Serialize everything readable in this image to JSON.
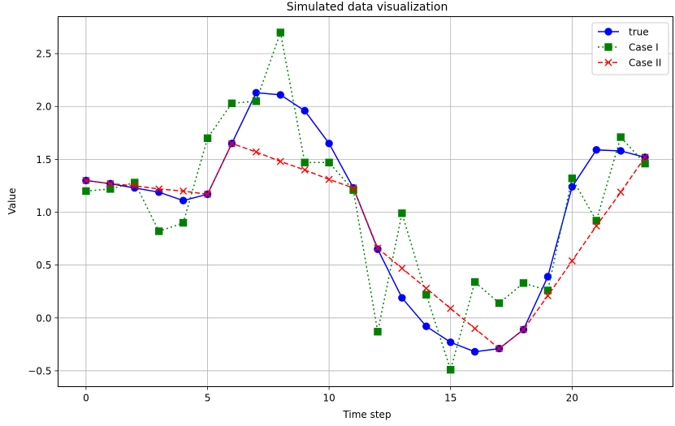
{
  "chart_data": {
    "type": "line",
    "title": "Simulated data visualization",
    "xlabel": "Time step",
    "ylabel": "Value",
    "xlim": [
      -1.15,
      24.15
    ],
    "ylim": [
      -0.65,
      2.85
    ],
    "xticks": [
      0,
      5,
      10,
      15,
      20
    ],
    "yticks": [
      -0.5,
      0.0,
      0.5,
      1.0,
      1.5,
      2.0,
      2.5
    ],
    "ytick_labels": [
      "−0.5",
      "0.0",
      "0.5",
      "1.0",
      "1.5",
      "2.0",
      "2.5"
    ],
    "grid": true,
    "legend_position": "top-right",
    "x": [
      0,
      1,
      2,
      3,
      4,
      5,
      6,
      7,
      8,
      9,
      10,
      11,
      12,
      13,
      14,
      15,
      16,
      17,
      18,
      19,
      20,
      21,
      22,
      23
    ],
    "series": [
      {
        "name": "true",
        "color": "#0000ff",
        "line_style": "solid",
        "marker": "circle",
        "values": [
          1.3,
          1.27,
          1.23,
          1.19,
          1.11,
          1.17,
          1.65,
          2.13,
          2.11,
          1.96,
          1.65,
          1.23,
          0.65,
          0.19,
          -0.08,
          -0.23,
          -0.32,
          -0.29,
          -0.11,
          0.39,
          1.24,
          1.59,
          1.58,
          1.52
        ]
      },
      {
        "name": "Case I",
        "color": "#008000",
        "line_style": "dotted",
        "marker": "square",
        "values": [
          1.2,
          1.22,
          1.28,
          0.82,
          0.9,
          1.7,
          2.03,
          2.05,
          2.7,
          1.47,
          1.47,
          1.21,
          -0.13,
          0.99,
          0.22,
          -0.49,
          0.34,
          0.14,
          0.33,
          0.26,
          1.32,
          0.92,
          1.71,
          1.46
        ]
      },
      {
        "name": "Case II",
        "color": "#ff0000",
        "line_style": "dashed",
        "marker": "x",
        "values": [
          1.3,
          1.27,
          1.25,
          1.22,
          1.2,
          1.17,
          1.65,
          1.57,
          1.48,
          1.4,
          1.31,
          1.23,
          0.66,
          0.47,
          0.28,
          0.09,
          -0.1,
          -0.29,
          -0.11,
          0.21,
          0.54,
          0.87,
          1.19,
          1.52
        ]
      }
    ]
  }
}
